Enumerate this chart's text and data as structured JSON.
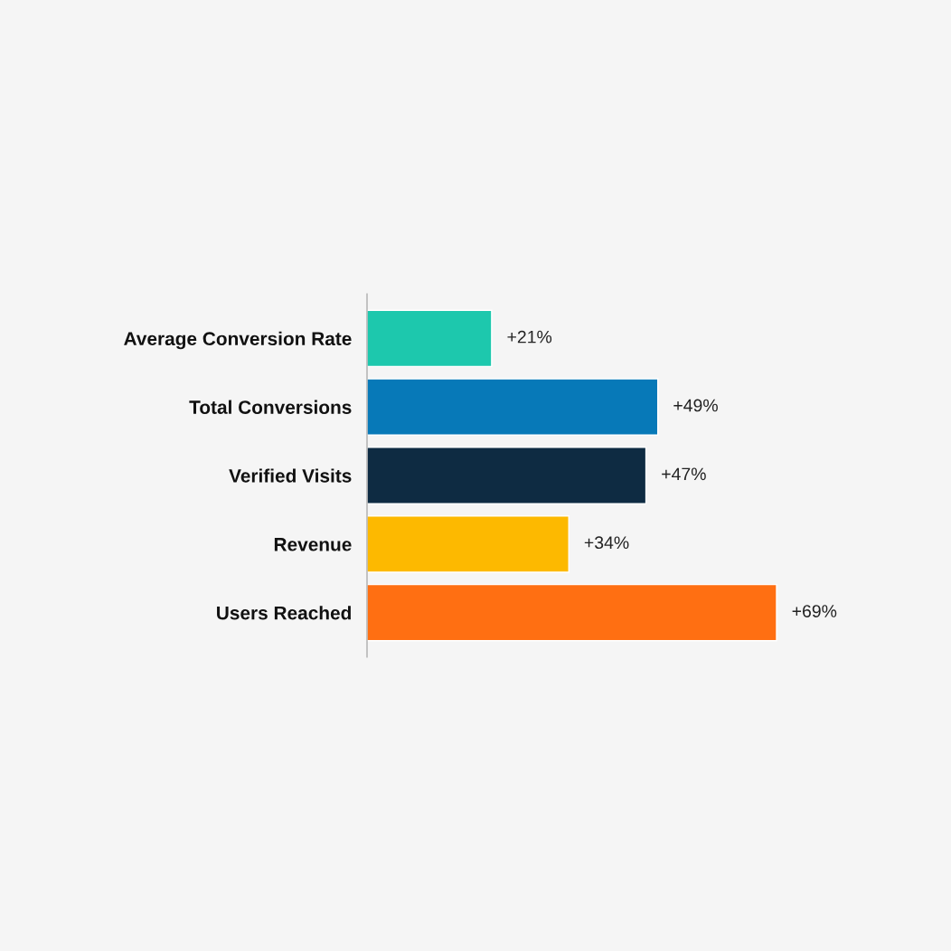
{
  "chart_data": {
    "type": "bar",
    "orientation": "horizontal",
    "categories": [
      "Average Conversion Rate",
      "Total Conversions",
      "Verified Visits",
      "Revenue",
      "Users Reached"
    ],
    "values": [
      21,
      49,
      47,
      34,
      69
    ],
    "colors": [
      "#1dc8ad",
      "#0779b8",
      "#0e2b42",
      "#fdb900",
      "#ff6f12"
    ],
    "value_labels": [
      "+21%",
      "+49%",
      "+47%",
      "+34%",
      "+69%"
    ],
    "grid": false,
    "legend": false
  }
}
